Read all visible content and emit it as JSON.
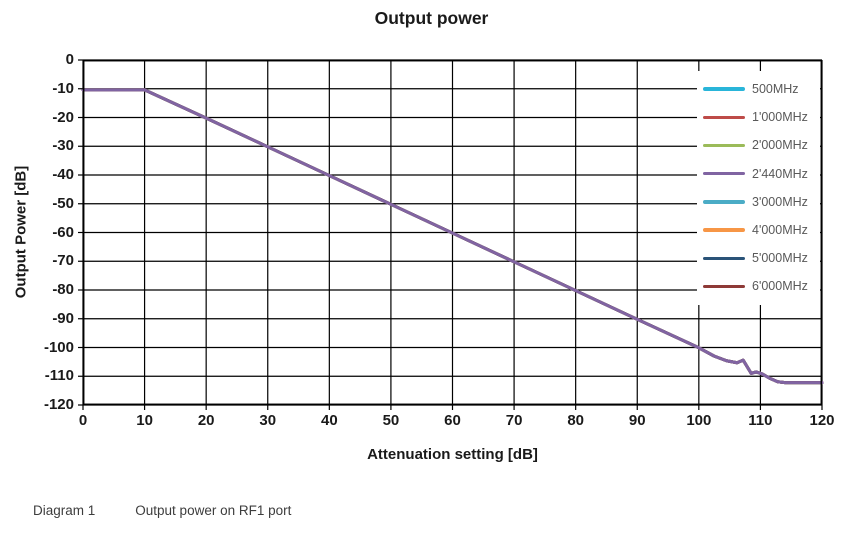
{
  "figure": {
    "background": "#ffffff",
    "caption": {
      "label": "Diagram 1",
      "text": "Output power on RF1 port"
    }
  },
  "chart_data": {
    "type": "line",
    "title": "Output power",
    "xlabel": "Attenuation setting [dB]",
    "ylabel": "Output Power [dB]",
    "xlim": [
      0,
      120
    ],
    "ylim": [
      -120,
      0
    ],
    "xticks": [
      0,
      10,
      20,
      30,
      40,
      50,
      60,
      70,
      80,
      90,
      100,
      110,
      120
    ],
    "yticks": [
      0,
      -10,
      -20,
      -30,
      -40,
      -50,
      -60,
      -70,
      -80,
      -90,
      -100,
      -110,
      -120
    ],
    "grid": true,
    "grid_color": "#000000",
    "axis_color": "#000000",
    "line_width": 3,
    "legend_position": "top-right-inside",
    "overlap_note": "All eight frequency series lie on top of each other; the 2'440MHz purple trace is drawn on top and is the visible line. Flat at about -10.4 dB up to 10 dB attenuation, then -1 dB/dB down to about -100 dB at 100, small shelf and bump near 106-108, then flattens at the noise floor of about -112 dB from 113 to 120.",
    "x": [
      0,
      10,
      20,
      30,
      40,
      50,
      60,
      70,
      80,
      90,
      100,
      102.5,
      104.5,
      106.2,
      107.2,
      108.5,
      109.3,
      110.3,
      111.5,
      112.8,
      114,
      120
    ],
    "shared_y": [
      -10.4,
      -10.4,
      -20.2,
      -30.2,
      -40.2,
      -50.2,
      -60.2,
      -70.2,
      -80.2,
      -90.2,
      -100.1,
      -103,
      -104.6,
      -105.3,
      -104.4,
      -109,
      -108.5,
      -109.2,
      -110.7,
      -111.9,
      -112.2,
      -112.2
    ],
    "series": [
      {
        "name": "500MHz",
        "color": "#29B5D9",
        "values": "shared_y"
      },
      {
        "name": "1'000MHz",
        "color": "#BE4B48",
        "values": "shared_y"
      },
      {
        "name": "2'000MHz",
        "color": "#9BBB59",
        "values": "shared_y"
      },
      {
        "name": "2'440MHz",
        "color": "#8064A2",
        "values": "shared_y",
        "on_top": true
      },
      {
        "name": "3'000MHz",
        "color": "#4BACC6",
        "values": "shared_y"
      },
      {
        "name": "4'000MHz",
        "color": "#F79646",
        "values": "shared_y"
      },
      {
        "name": "5'000MHz",
        "color": "#2A5378",
        "values": "shared_y"
      },
      {
        "name": "6'000MHz",
        "color": "#8E3A37",
        "values": "shared_y"
      }
    ]
  }
}
